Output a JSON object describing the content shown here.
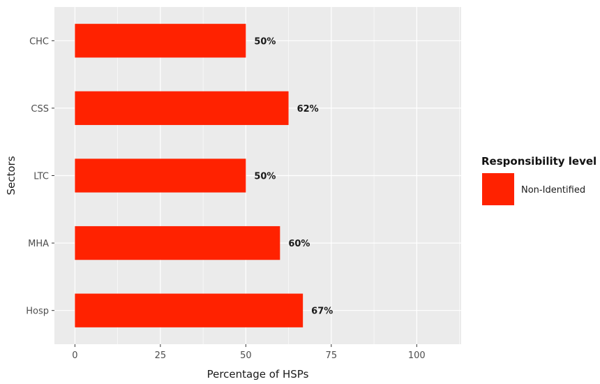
{
  "chart_data": {
    "type": "bar",
    "orientation": "horizontal",
    "categories": [
      "CHC",
      "CSS",
      "LTC",
      "MHA",
      "Hosp"
    ],
    "series": [
      {
        "name": "Non-Identified",
        "values": [
          50,
          62.5,
          50,
          60,
          66.7
        ],
        "labels": [
          "50%",
          "62%",
          "50%",
          "60%",
          "67%"
        ],
        "color": "#ff2200"
      }
    ],
    "xlabel": "Percentage of HSPs",
    "ylabel": "Sectors",
    "xlim": [
      -6,
      113
    ],
    "xticks": [
      0,
      25,
      50,
      75,
      100
    ],
    "grid": true,
    "panel_background": "#ebebeb",
    "grid_color": "#ffffff",
    "legend": {
      "title": "Responsibility level",
      "position": "right"
    }
  }
}
